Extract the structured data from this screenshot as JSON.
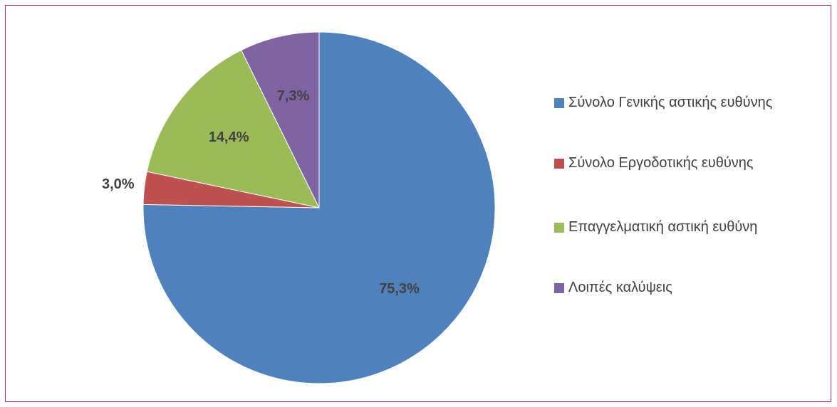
{
  "chart_data": {
    "type": "pie",
    "categories": [
      "Σύνολο Γενικής αστικής ευθύνης",
      "Σύνολο Εργοδοτικής ευθύνης",
      "Επαγγελματική αστική ευθύνη",
      "Λοιπές καλύψεις"
    ],
    "values": [
      75.3,
      3.0,
      14.4,
      7.3
    ],
    "value_labels": [
      "75,3%",
      "3,0%",
      "14,4%",
      "7,3%"
    ],
    "colors": [
      "#4f81bd",
      "#c0504d",
      "#9bbb59",
      "#8064a2"
    ],
    "legend": "right"
  }
}
